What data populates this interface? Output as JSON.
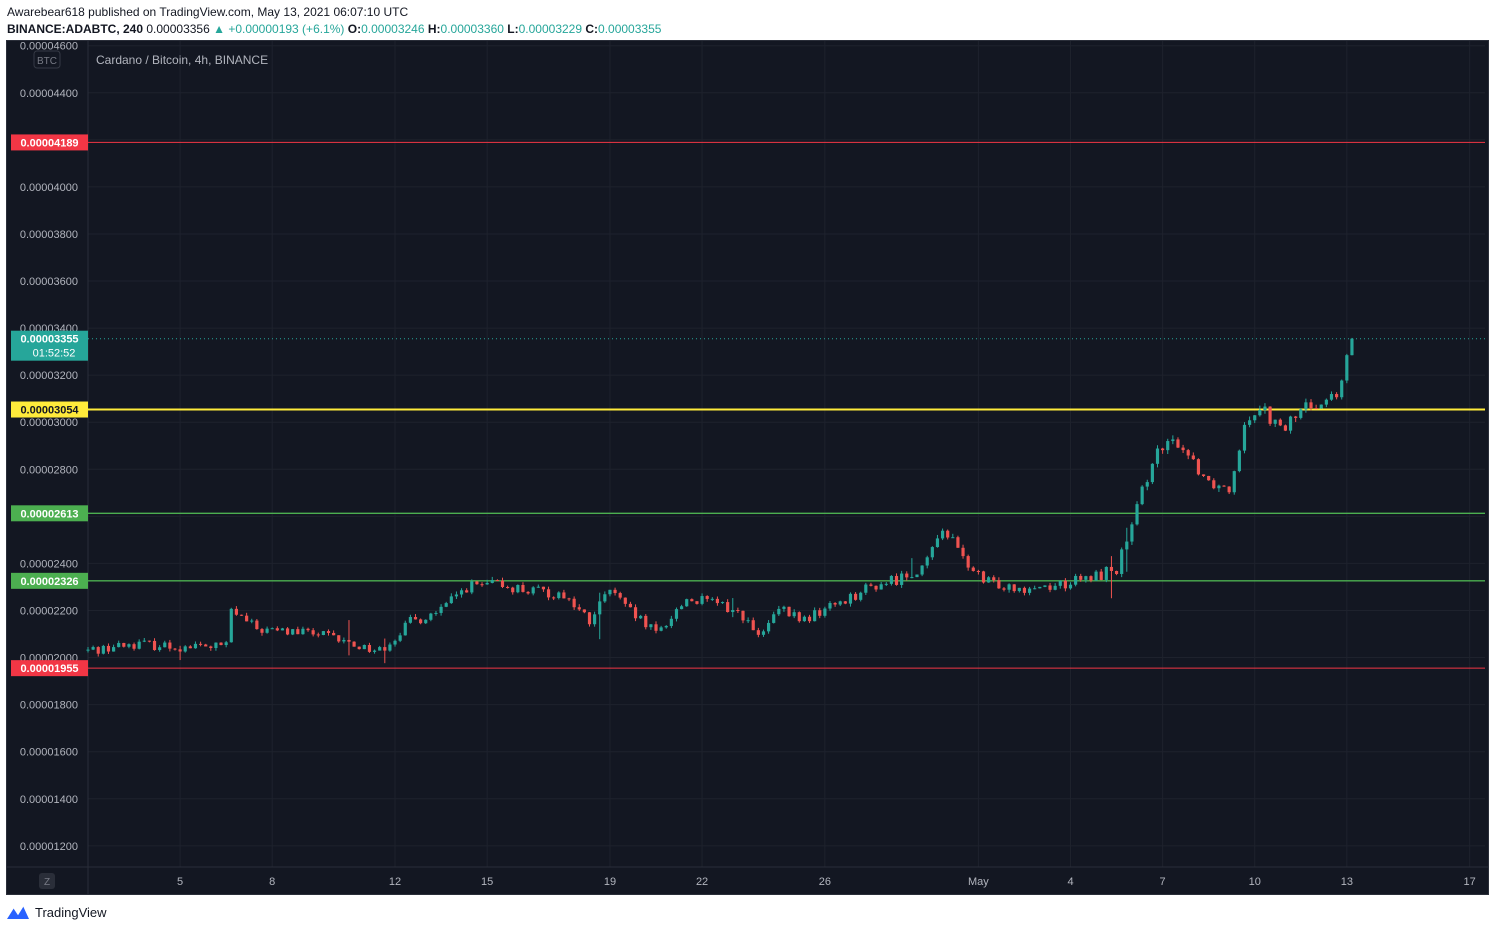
{
  "header": {
    "published_line": "Awarebear618 published on TradingView.com, May 13, 2021 06:07:10 UTC",
    "symbol": "BINANCE:ADABTC, 240",
    "last": "0.00003356",
    "change": "▲ +0.00000193 (+6.1%)",
    "o_label": "O:",
    "o_value": "0.00003246",
    "h_label": "H:",
    "h_value": "0.00003360",
    "l_label": "L:",
    "l_value": "0.00003229",
    "c_label": "C:",
    "c_value": "0.00003355"
  },
  "footer": {
    "brand": "TradingView",
    "brand_icon": "tradingview-logo-icon"
  },
  "colors": {
    "background": "#131722",
    "grid": "#1e222d",
    "up": "#26a69a",
    "down": "#ef5350",
    "axis_text": "#b2b5be",
    "red_level": "#f23645",
    "yellow_level": "#ffeb3b",
    "green_level": "#4caf50"
  },
  "chart_data": {
    "type": "candlestick",
    "title": "Cardano / Bitcoin, 4h, BINANCE",
    "currency_badge": "BTC",
    "goto_badge": "Z",
    "timeframe_hours": 4,
    "ylim": [
      1.11e-05,
      4.62e-05
    ],
    "ytick_values": [
      1.2e-05,
      1.4e-05,
      1.6e-05,
      1.8e-05,
      2e-05,
      2.2e-05,
      2.4e-05,
      2.6e-05,
      2.8e-05,
      3e-05,
      3.2e-05,
      3.4e-05,
      3.6e-05,
      3.8e-05,
      4e-05,
      4.2e-05,
      4.4e-05,
      4.6e-05
    ],
    "ytick_labels": [
      "0.00001200",
      "0.00001400",
      "0.00001600",
      "0.00001800",
      "0.00002000",
      "0.00002200",
      "0.00002400",
      "0.00002600",
      "0.00002800",
      "0.00003000",
      "0.00003200",
      "0.00003400",
      "0.00003600",
      "0.00003800",
      "0.00004000",
      "0.00004200",
      "0.00004400",
      "0.00004600"
    ],
    "xlim": [
      "2021-04-02",
      "2021-05-17T12:00"
    ],
    "xticks": [
      {
        "date": "2021-04-05",
        "label": "5"
      },
      {
        "date": "2021-04-08",
        "label": "8"
      },
      {
        "date": "2021-04-12",
        "label": "12"
      },
      {
        "date": "2021-04-15",
        "label": "15"
      },
      {
        "date": "2021-04-19",
        "label": "19"
      },
      {
        "date": "2021-04-22",
        "label": "22"
      },
      {
        "date": "2021-04-26",
        "label": "26"
      },
      {
        "date": "2021-05-01",
        "label": "May"
      },
      {
        "date": "2021-05-04",
        "label": "4"
      },
      {
        "date": "2021-05-07",
        "label": "7"
      },
      {
        "date": "2021-05-10",
        "label": "10"
      },
      {
        "date": "2021-05-13",
        "label": "13"
      },
      {
        "date": "2021-05-17",
        "label": "17"
      }
    ],
    "levels": [
      {
        "value": 4.189e-05,
        "label": "0.00004189",
        "color": "#f23645"
      },
      {
        "value": 3.054e-05,
        "label": "0.00003054",
        "color": "#ffeb3b"
      },
      {
        "value": 2.613e-05,
        "label": "0.00002613",
        "color": "#4caf50"
      },
      {
        "value": 2.326e-05,
        "label": "0.00002326",
        "color": "#4caf50"
      },
      {
        "value": 1.955e-05,
        "label": "0.00001955",
        "color": "#f23645"
      }
    ],
    "last_price": {
      "value": 3.355e-05,
      "label": "0.00003355",
      "countdown": "01:52:52"
    },
    "key_points": [
      [
        "2021-04-02T00:00",
        2.03e-05
      ],
      [
        "2021-04-03T12:00",
        2.06e-05
      ],
      [
        "2021-04-05T00:00",
        2.045e-05
      ],
      [
        "2021-04-06T12:00",
        2.05e-05
      ],
      [
        "2021-04-06T16:00",
        2.2e-05
      ],
      [
        "2021-04-07T12:00",
        2.12e-05
      ],
      [
        "2021-04-08T12:00",
        2.11e-05
      ],
      [
        "2021-04-09T12:00",
        2.1e-05
      ],
      [
        "2021-04-10T12:00",
        2.06e-05
      ],
      [
        "2021-04-11T12:00",
        2.03e-05
      ],
      [
        "2021-04-12T12:00",
        2.15e-05
      ],
      [
        "2021-04-13T12:00",
        2.2e-05
      ],
      [
        "2021-04-14T08:00",
        2.3e-05
      ],
      [
        "2021-04-15T12:00",
        2.31e-05
      ],
      [
        "2021-04-16T12:00",
        2.28e-05
      ],
      [
        "2021-04-17T12:00",
        2.27e-05
      ],
      [
        "2021-04-18T08:00",
        2.15e-05
      ],
      [
        "2021-04-19T00:00",
        2.29e-05
      ],
      [
        "2021-04-19T12:00",
        2.21e-05
      ],
      [
        "2021-04-20T12:00",
        2.1e-05
      ],
      [
        "2021-04-21T12:00",
        2.25e-05
      ],
      [
        "2021-04-22T12:00",
        2.23e-05
      ],
      [
        "2021-04-23T08:00",
        2.18e-05
      ],
      [
        "2021-04-23T20:00",
        2.08e-05
      ],
      [
        "2021-04-24T12:00",
        2.2e-05
      ],
      [
        "2021-04-25T08:00",
        2.16e-05
      ],
      [
        "2021-04-26T12:00",
        2.24e-05
      ],
      [
        "2021-04-27T12:00",
        2.3e-05
      ],
      [
        "2021-04-28T12:00",
        2.34e-05
      ],
      [
        "2021-04-29T08:00",
        2.4e-05
      ],
      [
        "2021-04-29T20:00",
        2.56e-05
      ],
      [
        "2021-04-30T12:00",
        2.42e-05
      ],
      [
        "2021-05-01T04:00",
        2.32e-05
      ],
      [
        "2021-05-02T12:00",
        2.3e-05
      ],
      [
        "2021-05-03T12:00",
        2.31e-05
      ],
      [
        "2021-05-04T12:00",
        2.33e-05
      ],
      [
        "2021-05-05T12:00",
        2.38e-05
      ],
      [
        "2021-05-06T00:00",
        2.55e-05
      ],
      [
        "2021-05-06T16:00",
        2.85e-05
      ],
      [
        "2021-05-07T12:00",
        2.92e-05
      ],
      [
        "2021-05-08T12:00",
        2.75e-05
      ],
      [
        "2021-05-09T04:00",
        2.72e-05
      ],
      [
        "2021-05-09T16:00",
        3e-05
      ],
      [
        "2021-05-10T04:00",
        3.08e-05
      ],
      [
        "2021-05-10T20:00",
        2.96e-05
      ],
      [
        "2021-05-11T12:00",
        3.05e-05
      ],
      [
        "2021-05-12T04:00",
        3.1e-05
      ],
      [
        "2021-05-12T16:00",
        3.1e-05
      ],
      [
        "2021-05-13T00:00",
        3.25e-05
      ],
      [
        "2021-05-13T04:00",
        3.355e-05
      ]
    ]
  }
}
